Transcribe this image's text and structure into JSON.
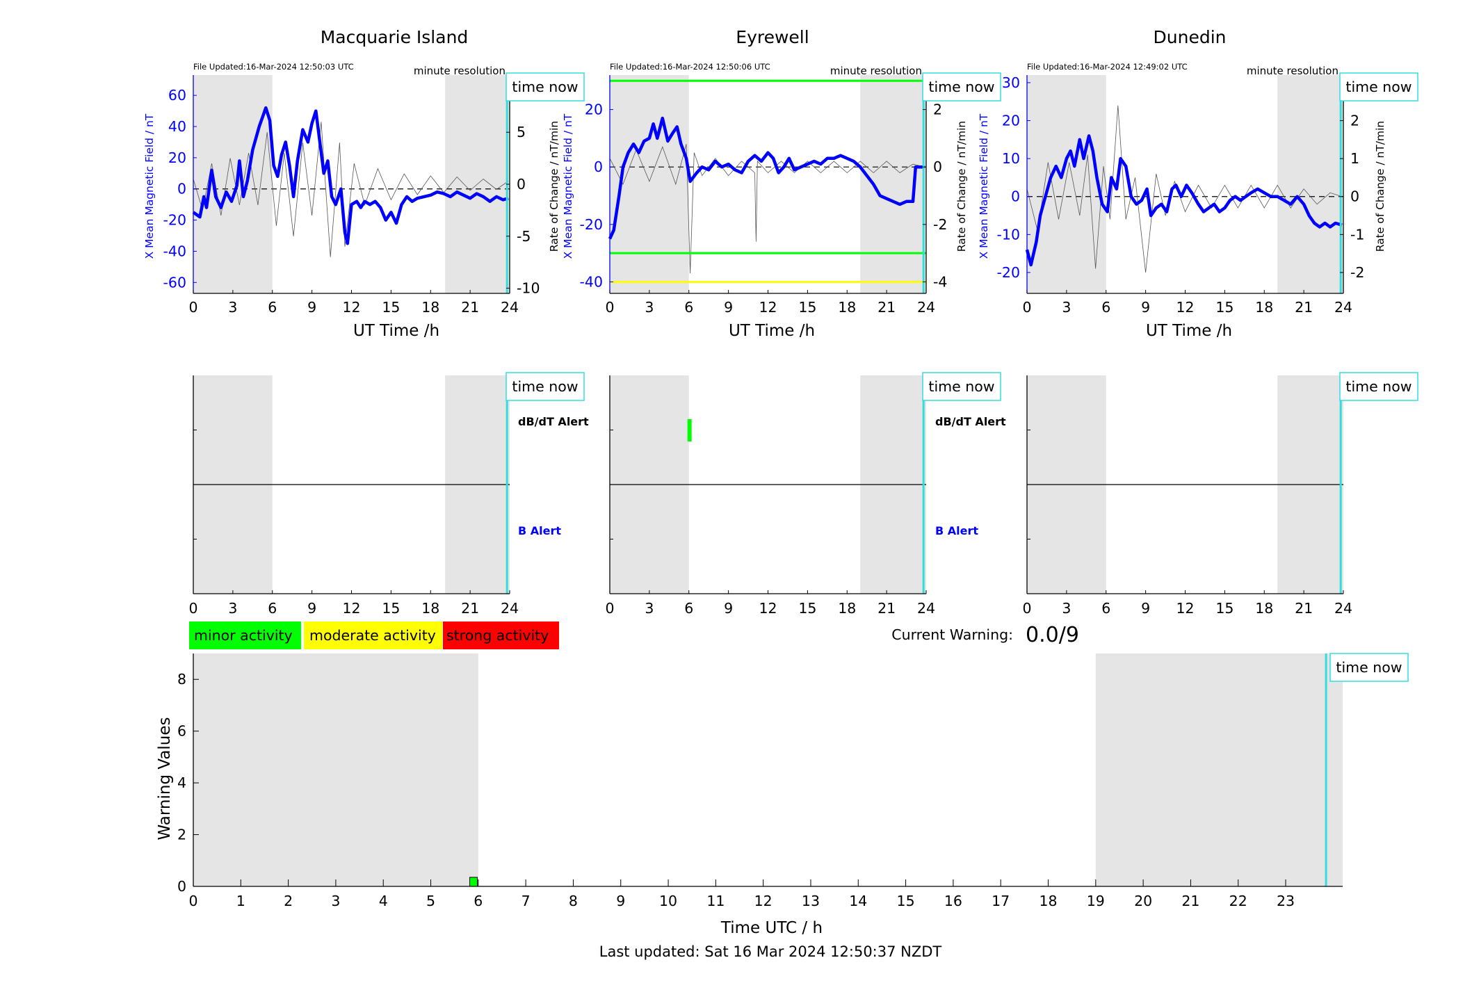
{
  "footer": {
    "last_updated": "Last updated: Sat 16 Mar 2024 12:50:37 NZDT"
  },
  "warning_box": {
    "label": "Current Warning:",
    "value": "0.0/9"
  },
  "legend": [
    {
      "label": "minor activity",
      "color": "#00ff00"
    },
    {
      "label": "moderate activity",
      "color": "#ffff00"
    },
    {
      "label": "strong activity",
      "color": "#ff0000"
    }
  ],
  "colors": {
    "field": "#0000ff",
    "rate": "#555555",
    "shade": "#e5e5e5",
    "time_now": "#33dddd"
  },
  "labels": {
    "time_now": "time now",
    "minute_resolution": "minute resolution",
    "xlabel_top": "UT Time /h",
    "ylabel_left": "X Mean Magnetic Field / nT",
    "ylabel_right": "Rate of Change / nT/min",
    "dbdt_alert": "dB/dT Alert",
    "b_alert": "B Alert"
  },
  "chart_data": [
    {
      "type": "line",
      "title": "Macquarie Island",
      "file_updated": "File Updated:16-Mar-2024 12:50:03 UTC",
      "xlim": [
        0,
        24
      ],
      "ylim": [
        -67,
        73
      ],
      "y2lim": [
        -10.5,
        10.5
      ],
      "xticks": [
        0,
        3,
        6,
        9,
        12,
        15,
        18,
        21,
        24
      ],
      "yticks": [
        -60,
        -40,
        -20,
        0,
        20,
        40,
        60
      ],
      "y2ticks": [
        -10,
        -5,
        0,
        5,
        10
      ],
      "shaded": [
        [
          0,
          6
        ],
        [
          19.1,
          24
        ]
      ],
      "time_now": 23.8,
      "thresholds": [],
      "field": [
        [
          0,
          -15
        ],
        [
          0.5,
          -18
        ],
        [
          0.8,
          -5
        ],
        [
          1,
          -12
        ],
        [
          1.4,
          12
        ],
        [
          1.7,
          -5
        ],
        [
          2.1,
          -12
        ],
        [
          2.5,
          -2
        ],
        [
          2.9,
          -8
        ],
        [
          3.3,
          2
        ],
        [
          3.5,
          18
        ],
        [
          3.8,
          -5
        ],
        [
          4.1,
          5
        ],
        [
          4.5,
          25
        ],
        [
          5,
          40
        ],
        [
          5.5,
          52
        ],
        [
          5.8,
          44
        ],
        [
          6.1,
          15
        ],
        [
          6.4,
          8
        ],
        [
          6.7,
          22
        ],
        [
          7,
          30
        ],
        [
          7.3,
          15
        ],
        [
          7.6,
          -5
        ],
        [
          7.9,
          18
        ],
        [
          8.3,
          38
        ],
        [
          8.7,
          30
        ],
        [
          9,
          42
        ],
        [
          9.3,
          50
        ],
        [
          9.6,
          30
        ],
        [
          9.9,
          10
        ],
        [
          10.2,
          18
        ],
        [
          10.5,
          -5
        ],
        [
          10.8,
          -10
        ],
        [
          11.2,
          0
        ],
        [
          11.5,
          -28
        ],
        [
          11.7,
          -35
        ],
        [
          12,
          -10
        ],
        [
          12.4,
          -8
        ],
        [
          12.7,
          -12
        ],
        [
          13,
          -8
        ],
        [
          13.4,
          -10
        ],
        [
          13.8,
          -8
        ],
        [
          14.2,
          -12
        ],
        [
          14.6,
          -20
        ],
        [
          15,
          -15
        ],
        [
          15.4,
          -22
        ],
        [
          15.8,
          -10
        ],
        [
          16.2,
          -5
        ],
        [
          16.6,
          -8
        ],
        [
          17,
          -6
        ],
        [
          17.5,
          -5
        ],
        [
          18,
          -4
        ],
        [
          18.5,
          -2
        ],
        [
          19,
          -3
        ],
        [
          19.5,
          -5
        ],
        [
          20,
          -2
        ],
        [
          20.5,
          -4
        ],
        [
          21,
          -6
        ],
        [
          21.5,
          -3
        ],
        [
          22,
          -5
        ],
        [
          22.5,
          -8
        ],
        [
          23,
          -5
        ],
        [
          23.5,
          -7
        ],
        [
          23.9,
          -6
        ]
      ],
      "rate": [
        [
          0,
          0.5
        ],
        [
          0.7,
          -2.5
        ],
        [
          1.4,
          2
        ],
        [
          2.1,
          -3
        ],
        [
          2.8,
          2.5
        ],
        [
          3.5,
          -2
        ],
        [
          4.2,
          3
        ],
        [
          4.9,
          -2
        ],
        [
          5.6,
          5
        ],
        [
          6.3,
          -4
        ],
        [
          6.9,
          3
        ],
        [
          7.6,
          -5
        ],
        [
          8.3,
          4
        ],
        [
          9,
          -3
        ],
        [
          9.7,
          6
        ],
        [
          10.4,
          -7
        ],
        [
          11.1,
          4
        ],
        [
          11.5,
          -6
        ],
        [
          12.2,
          2
        ],
        [
          13,
          -2
        ],
        [
          14,
          1.5
        ],
        [
          15,
          -1.5
        ],
        [
          16,
          1
        ],
        [
          17,
          -1
        ],
        [
          18,
          0.8
        ],
        [
          19,
          -0.8
        ],
        [
          20,
          0.7
        ],
        [
          21,
          -0.6
        ],
        [
          22,
          0.5
        ],
        [
          23,
          -0.5
        ],
        [
          23.9,
          0.3
        ]
      ],
      "alerts": [],
      "alert_labels": true
    },
    {
      "type": "line",
      "title": "Eyrewell",
      "file_updated": "File Updated:16-Mar-2024 12:50:06 UTC",
      "xlim": [
        0,
        24
      ],
      "ylim": [
        -44,
        32
      ],
      "y2lim": [
        -4.4,
        3.2
      ],
      "xticks": [
        0,
        3,
        6,
        9,
        12,
        15,
        18,
        21,
        24
      ],
      "yticks": [
        -40,
        -20,
        0,
        20
      ],
      "y2ticks": [
        -4,
        -2,
        0,
        2
      ],
      "shaded": [
        [
          0,
          6
        ],
        [
          19,
          24
        ]
      ],
      "time_now": 23.8,
      "thresholds": [
        {
          "y": 30,
          "color": "#00ff00"
        },
        {
          "y": -30,
          "color": "#00ff00"
        },
        {
          "y": -40,
          "color": "#ffff00"
        }
      ],
      "field": [
        [
          0,
          -25
        ],
        [
          0.3,
          -22
        ],
        [
          0.7,
          -10
        ],
        [
          1,
          0
        ],
        [
          1.4,
          5
        ],
        [
          1.8,
          8
        ],
        [
          2.2,
          5
        ],
        [
          2.6,
          9
        ],
        [
          3,
          10
        ],
        [
          3.3,
          15
        ],
        [
          3.6,
          10
        ],
        [
          4,
          17
        ],
        [
          4.4,
          9
        ],
        [
          4.8,
          12
        ],
        [
          5.1,
          14
        ],
        [
          5.4,
          8
        ],
        [
          5.8,
          3
        ],
        [
          6.1,
          -5
        ],
        [
          6.6,
          -2
        ],
        [
          7,
          0
        ],
        [
          7.5,
          -1
        ],
        [
          8,
          2
        ],
        [
          8.5,
          0
        ],
        [
          9,
          1
        ],
        [
          9.5,
          -1
        ],
        [
          10,
          -2
        ],
        [
          10.5,
          2
        ],
        [
          11,
          4
        ],
        [
          11.5,
          2
        ],
        [
          12,
          5
        ],
        [
          12.4,
          3
        ],
        [
          12.8,
          -2
        ],
        [
          13.2,
          0
        ],
        [
          13.6,
          3
        ],
        [
          14,
          -1
        ],
        [
          14.5,
          0
        ],
        [
          15,
          1
        ],
        [
          15.5,
          2
        ],
        [
          16,
          1
        ],
        [
          16.5,
          3
        ],
        [
          17,
          3
        ],
        [
          17.5,
          4
        ],
        [
          18,
          3
        ],
        [
          18.5,
          2
        ],
        [
          19,
          0
        ],
        [
          19.5,
          -3
        ],
        [
          20,
          -6
        ],
        [
          20.5,
          -10
        ],
        [
          21,
          -11
        ],
        [
          21.5,
          -12
        ],
        [
          22,
          -13
        ],
        [
          22.5,
          -12
        ],
        [
          23,
          -12
        ],
        [
          23.2,
          0
        ],
        [
          23.9,
          0
        ]
      ],
      "rate": [
        [
          0,
          0.3
        ],
        [
          1,
          -0.6
        ],
        [
          2,
          0.6
        ],
        [
          3,
          -0.5
        ],
        [
          4,
          0.7
        ],
        [
          5,
          -0.6
        ],
        [
          5.8,
          0.8
        ],
        [
          6.1,
          -3.7
        ],
        [
          6.4,
          0.5
        ],
        [
          7,
          -0.3
        ],
        [
          8,
          0.3
        ],
        [
          9,
          -0.3
        ],
        [
          10,
          0.2
        ],
        [
          11,
          -0.2
        ],
        [
          11.1,
          -2.6
        ],
        [
          11.2,
          0.2
        ],
        [
          12,
          -0.2
        ],
        [
          13,
          0.2
        ],
        [
          14,
          -0.2
        ],
        [
          15,
          0.2
        ],
        [
          16,
          -0.2
        ],
        [
          17,
          0.2
        ],
        [
          18,
          -0.2
        ],
        [
          19,
          0.2
        ],
        [
          20,
          -0.2
        ],
        [
          21,
          0.2
        ],
        [
          22,
          -0.2
        ],
        [
          23,
          0.1
        ],
        [
          23.9,
          0
        ]
      ],
      "alerts": [
        {
          "t": 6.05,
          "color": "#00ff00"
        }
      ],
      "alert_labels": true
    },
    {
      "type": "line",
      "title": "Dunedin",
      "file_updated": "File Updated:16-Mar-2024 12:49:02 UTC",
      "xlim": [
        0,
        24
      ],
      "ylim": [
        -25.5,
        32
      ],
      "y2lim": [
        -2.55,
        3.2
      ],
      "xticks": [
        0,
        3,
        6,
        9,
        12,
        15,
        18,
        21,
        24
      ],
      "yticks": [
        -20,
        -10,
        0,
        10,
        20,
        30
      ],
      "y2ticks": [
        -2,
        -1,
        0,
        1,
        2,
        3
      ],
      "shaded": [
        [
          0,
          6
        ],
        [
          19,
          24
        ]
      ],
      "time_now": 23.8,
      "thresholds": [],
      "field": [
        [
          0,
          -14
        ],
        [
          0.3,
          -18
        ],
        [
          0.7,
          -12
        ],
        [
          1,
          -5
        ],
        [
          1.4,
          0
        ],
        [
          1.8,
          5
        ],
        [
          2.2,
          8
        ],
        [
          2.6,
          5
        ],
        [
          3,
          10
        ],
        [
          3.3,
          12
        ],
        [
          3.6,
          8
        ],
        [
          4,
          15
        ],
        [
          4.3,
          10
        ],
        [
          4.7,
          16
        ],
        [
          5,
          12
        ],
        [
          5.3,
          5
        ],
        [
          5.7,
          -2
        ],
        [
          6.1,
          -4
        ],
        [
          6.4,
          5
        ],
        [
          6.8,
          2
        ],
        [
          7.1,
          10
        ],
        [
          7.5,
          8
        ],
        [
          7.9,
          0
        ],
        [
          8.3,
          -2
        ],
        [
          8.7,
          -1
        ],
        [
          9.1,
          2
        ],
        [
          9.4,
          -5
        ],
        [
          9.8,
          -3
        ],
        [
          10.2,
          -2
        ],
        [
          10.6,
          -4
        ],
        [
          11,
          2
        ],
        [
          11.3,
          3
        ],
        [
          11.7,
          0
        ],
        [
          12.1,
          3
        ],
        [
          12.5,
          1
        ],
        [
          13,
          -2
        ],
        [
          13.4,
          -4
        ],
        [
          13.8,
          -3
        ],
        [
          14.2,
          -2
        ],
        [
          14.6,
          -4
        ],
        [
          15,
          -3
        ],
        [
          15.4,
          -1
        ],
        [
          15.8,
          0
        ],
        [
          16.2,
          -1
        ],
        [
          16.6,
          0
        ],
        [
          17,
          1
        ],
        [
          17.5,
          2
        ],
        [
          18,
          1
        ],
        [
          18.5,
          0
        ],
        [
          19,
          0
        ],
        [
          19.5,
          -1
        ],
        [
          20,
          -2
        ],
        [
          20.5,
          0
        ],
        [
          21,
          -2
        ],
        [
          21.4,
          -5
        ],
        [
          21.8,
          -7
        ],
        [
          22.2,
          -8
        ],
        [
          22.6,
          -7
        ],
        [
          23,
          -8
        ],
        [
          23.4,
          -7
        ],
        [
          23.9,
          -7.5
        ]
      ],
      "rate": [
        [
          0,
          0.2
        ],
        [
          0.8,
          -0.9
        ],
        [
          1.6,
          0.9
        ],
        [
          2.4,
          -0.6
        ],
        [
          3.2,
          0.9
        ],
        [
          4,
          -0.5
        ],
        [
          4.6,
          1.1
        ],
        [
          5.2,
          -1.9
        ],
        [
          5.8,
          0.8
        ],
        [
          6.3,
          -0.6
        ],
        [
          6.9,
          2.4
        ],
        [
          7.5,
          -0.6
        ],
        [
          8.2,
          0.5
        ],
        [
          9,
          -2
        ],
        [
          9.8,
          0.6
        ],
        [
          10.5,
          -0.5
        ],
        [
          11.2,
          0.4
        ],
        [
          12,
          -0.4
        ],
        [
          13,
          0.3
        ],
        [
          14,
          -0.3
        ],
        [
          15,
          0.3
        ],
        [
          16,
          -0.3
        ],
        [
          17,
          0.3
        ],
        [
          18,
          -0.3
        ],
        [
          19,
          0.3
        ],
        [
          20,
          -0.3
        ],
        [
          21,
          0.2
        ],
        [
          22,
          -0.2
        ],
        [
          23,
          0.1
        ],
        [
          23.9,
          0
        ]
      ],
      "alerts": [],
      "alert_labels": false
    },
    {
      "type": "bar",
      "title": "",
      "xlabel": "Time UTC / h",
      "ylabel": "Warning Values",
      "xlim": [
        0,
        24.2
      ],
      "ylim": [
        0,
        9
      ],
      "xticks": [
        0,
        1,
        2,
        3,
        4,
        5,
        6,
        7,
        8,
        9,
        10,
        11,
        12,
        13,
        14,
        15,
        16,
        17,
        18,
        19,
        20,
        21,
        22,
        23
      ],
      "yticks": [
        0,
        2,
        4,
        6,
        8
      ],
      "shaded": [
        [
          0,
          6
        ],
        [
          19,
          24.2
        ]
      ],
      "time_now": 23.85,
      "bars": [
        {
          "t": 5.9,
          "value": 0.35,
          "color": "#00ff00"
        }
      ]
    }
  ]
}
